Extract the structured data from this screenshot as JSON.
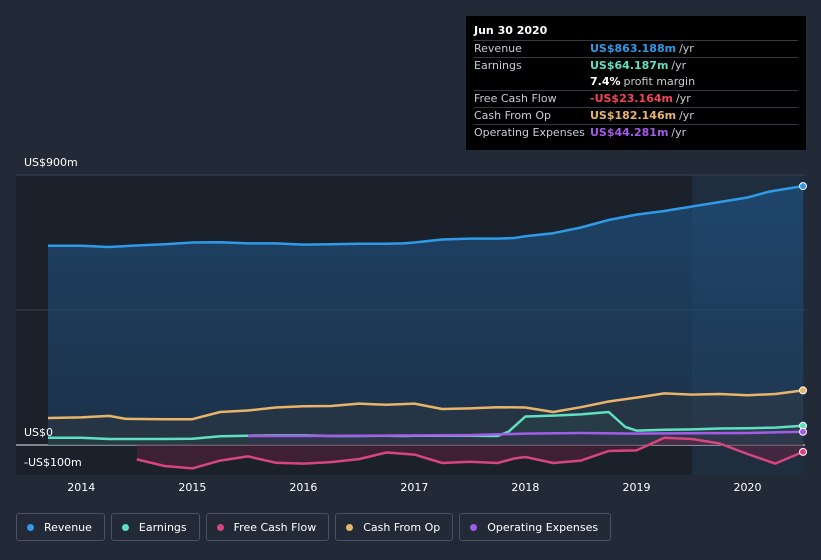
{
  "tooltip": {
    "date": "Jun 30 2020",
    "rows": [
      {
        "label": "Revenue",
        "value": "US$863.188m",
        "unit": "/yr",
        "color": "#2f9ae8"
      },
      {
        "label": "Earnings",
        "value": "US$64.187m",
        "unit": "/yr",
        "color": "#5fe0c0"
      },
      {
        "label": "",
        "value": "7.4%",
        "unit": "profit margin",
        "color": "#ffffff"
      },
      {
        "label": "Free Cash Flow",
        "value": "-US$23.164m",
        "unit": "/yr",
        "color": "#f0455a"
      },
      {
        "label": "Cash From Op",
        "value": "US$182.146m",
        "unit": "/yr",
        "color": "#e8b46a"
      },
      {
        "label": "Operating Expenses",
        "value": "US$44.281m",
        "unit": "/yr",
        "color": "#a35ce8"
      }
    ]
  },
  "legend": [
    {
      "label": "Revenue",
      "color": "#2f9ae8"
    },
    {
      "label": "Earnings",
      "color": "#5fe0c0"
    },
    {
      "label": "Free Cash Flow",
      "color": "#d6457f"
    },
    {
      "label": "Cash From Op",
      "color": "#e8b46a"
    },
    {
      "label": "Operating Expenses",
      "color": "#a35ce8"
    }
  ],
  "chart_data": {
    "type": "area",
    "title": "",
    "ylabel_top": "US$900m",
    "ylabel_zero": "US$0",
    "ylabel_bottom": "-US$100m",
    "ylim": [
      -100,
      900
    ],
    "xlim": [
      2013.7,
      2020.5
    ],
    "x_ticks": [
      2014,
      2015,
      2016,
      2017,
      2018,
      2019,
      2020
    ],
    "x_tick_labels": [
      "2014",
      "2015",
      "2016",
      "2017",
      "2018",
      "2019",
      "2020"
    ],
    "forecast_region_start": 2019.5,
    "series": [
      {
        "name": "Revenue",
        "color": "#2f9ae8",
        "points": [
          [
            2013.7,
            664
          ],
          [
            2014.0,
            664
          ],
          [
            2014.25,
            660
          ],
          [
            2014.5,
            665
          ],
          [
            2014.75,
            669
          ],
          [
            2015.0,
            675
          ],
          [
            2015.25,
            676
          ],
          [
            2015.5,
            672
          ],
          [
            2015.75,
            672
          ],
          [
            2016.0,
            668
          ],
          [
            2016.25,
            669
          ],
          [
            2016.5,
            671
          ],
          [
            2016.75,
            671
          ],
          [
            2016.9,
            672
          ],
          [
            2017.0,
            675
          ],
          [
            2017.25,
            685
          ],
          [
            2017.5,
            688
          ],
          [
            2017.75,
            688
          ],
          [
            2017.9,
            690
          ],
          [
            2018.0,
            696
          ],
          [
            2018.25,
            706
          ],
          [
            2018.5,
            725
          ],
          [
            2018.75,
            750
          ],
          [
            2019.0,
            768
          ],
          [
            2019.25,
            780
          ],
          [
            2019.5,
            795
          ],
          [
            2019.75,
            810
          ],
          [
            2020.0,
            825
          ],
          [
            2020.2,
            845
          ],
          [
            2020.5,
            863
          ]
        ]
      },
      {
        "name": "Cash From Op",
        "color": "#e8b46a",
        "points": [
          [
            2013.7,
            90
          ],
          [
            2014.0,
            92
          ],
          [
            2014.25,
            97
          ],
          [
            2014.4,
            87
          ],
          [
            2014.75,
            86
          ],
          [
            2015.0,
            86
          ],
          [
            2015.25,
            110
          ],
          [
            2015.5,
            115
          ],
          [
            2015.75,
            125
          ],
          [
            2016.0,
            129
          ],
          [
            2016.25,
            130
          ],
          [
            2016.5,
            138
          ],
          [
            2016.75,
            134
          ],
          [
            2017.0,
            138
          ],
          [
            2017.25,
            120
          ],
          [
            2017.5,
            122
          ],
          [
            2017.75,
            126
          ],
          [
            2018.0,
            125
          ],
          [
            2018.25,
            110
          ],
          [
            2018.5,
            126
          ],
          [
            2018.75,
            145
          ],
          [
            2019.0,
            158
          ],
          [
            2019.25,
            172
          ],
          [
            2019.5,
            168
          ],
          [
            2019.75,
            170
          ],
          [
            2020.0,
            166
          ],
          [
            2020.25,
            170
          ],
          [
            2020.5,
            182
          ]
        ]
      },
      {
        "name": "Earnings",
        "color": "#5fe0c0",
        "points": [
          [
            2013.7,
            24
          ],
          [
            2014.0,
            24
          ],
          [
            2014.25,
            20
          ],
          [
            2014.5,
            20
          ],
          [
            2014.75,
            20
          ],
          [
            2015.0,
            21
          ],
          [
            2015.25,
            29
          ],
          [
            2015.5,
            31
          ],
          [
            2015.75,
            32
          ],
          [
            2016.0,
            32
          ],
          [
            2016.25,
            30
          ],
          [
            2016.5,
            30
          ],
          [
            2016.75,
            31
          ],
          [
            2016.9,
            30
          ],
          [
            2017.0,
            31
          ],
          [
            2017.25,
            31
          ],
          [
            2017.5,
            31
          ],
          [
            2017.75,
            30
          ],
          [
            2017.85,
            45
          ],
          [
            2018.0,
            95
          ],
          [
            2018.25,
            98
          ],
          [
            2018.5,
            102
          ],
          [
            2018.75,
            110
          ],
          [
            2018.9,
            60
          ],
          [
            2019.0,
            48
          ],
          [
            2019.25,
            51
          ],
          [
            2019.5,
            52
          ],
          [
            2019.75,
            55
          ],
          [
            2020.0,
            56
          ],
          [
            2020.25,
            58
          ],
          [
            2020.5,
            64
          ]
        ]
      },
      {
        "name": "Operating Expenses",
        "color": "#a35ce8",
        "points": [
          [
            2015.5,
            30
          ],
          [
            2016.0,
            30
          ],
          [
            2016.5,
            31
          ],
          [
            2017.0,
            32
          ],
          [
            2017.5,
            33
          ],
          [
            2018.0,
            38
          ],
          [
            2018.5,
            40
          ],
          [
            2019.0,
            38
          ],
          [
            2019.5,
            39
          ],
          [
            2020.0,
            40
          ],
          [
            2020.5,
            44
          ]
        ]
      },
      {
        "name": "Free Cash Flow",
        "color": "#d6457f",
        "points": [
          [
            2014.5,
            -48
          ],
          [
            2014.75,
            -70
          ],
          [
            2015.0,
            -78
          ],
          [
            2015.25,
            -52
          ],
          [
            2015.5,
            -38
          ],
          [
            2015.75,
            -59
          ],
          [
            2016.0,
            -62
          ],
          [
            2016.25,
            -57
          ],
          [
            2016.5,
            -47
          ],
          [
            2016.75,
            -25
          ],
          [
            2017.0,
            -32
          ],
          [
            2017.25,
            -60
          ],
          [
            2017.5,
            -56
          ],
          [
            2017.75,
            -60
          ],
          [
            2017.9,
            -45
          ],
          [
            2018.0,
            -40
          ],
          [
            2018.25,
            -60
          ],
          [
            2018.5,
            -52
          ],
          [
            2018.75,
            -20
          ],
          [
            2019.0,
            -18
          ],
          [
            2019.25,
            24
          ],
          [
            2019.5,
            20
          ],
          [
            2019.75,
            5
          ],
          [
            2020.0,
            -30
          ],
          [
            2020.25,
            -62
          ],
          [
            2020.5,
            -23
          ]
        ]
      }
    ]
  }
}
